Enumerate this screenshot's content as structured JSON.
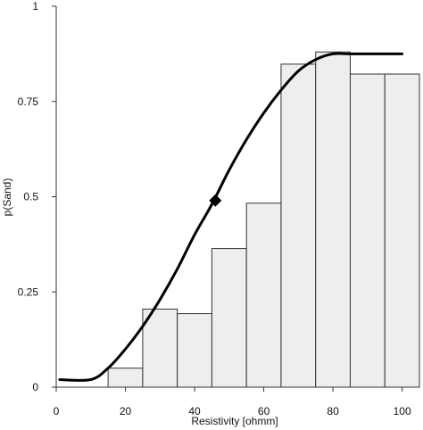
{
  "chart_data": {
    "type": "bar",
    "xlabel": "Resistivity [ohmm]",
    "ylabel": "p(Sand)",
    "xlim": [
      0,
      105
    ],
    "ylim": [
      0,
      1
    ],
    "x_ticks": [
      0,
      20,
      40,
      60,
      80,
      100
    ],
    "x_tick_labels": [
      "0",
      "20",
      "40",
      "60",
      "80",
      "100"
    ],
    "y_ticks": [
      0,
      0.25,
      0.5,
      0.75,
      1
    ],
    "y_tick_labels": [
      "0",
      "0.25",
      "0.5",
      "0.75",
      "1"
    ],
    "grid": false,
    "histogram": {
      "bin_starts": [
        15,
        25,
        35,
        45,
        55,
        65,
        75,
        85,
        95
      ],
      "bin_width": 10,
      "values": [
        0.05,
        0.205,
        0.193,
        0.364,
        0.483,
        0.848,
        0.88,
        0.822,
        0.822
      ],
      "fill_color": "#eeeeee",
      "edge_color": "#333333"
    },
    "curve": {
      "x": [
        1,
        10,
        15,
        20,
        25,
        30,
        35,
        40,
        45,
        50,
        55,
        60,
        65,
        70,
        75,
        80,
        85,
        100
      ],
      "y": [
        0.02,
        0.02,
        0.05,
        0.1,
        0.16,
        0.23,
        0.31,
        0.4,
        0.48,
        0.57,
        0.65,
        0.72,
        0.78,
        0.83,
        0.86,
        0.875,
        0.875,
        0.875
      ],
      "color": "#000000"
    },
    "marker": {
      "x": 46,
      "y": 0.49,
      "shape": "diamond",
      "color": "#000000"
    }
  }
}
